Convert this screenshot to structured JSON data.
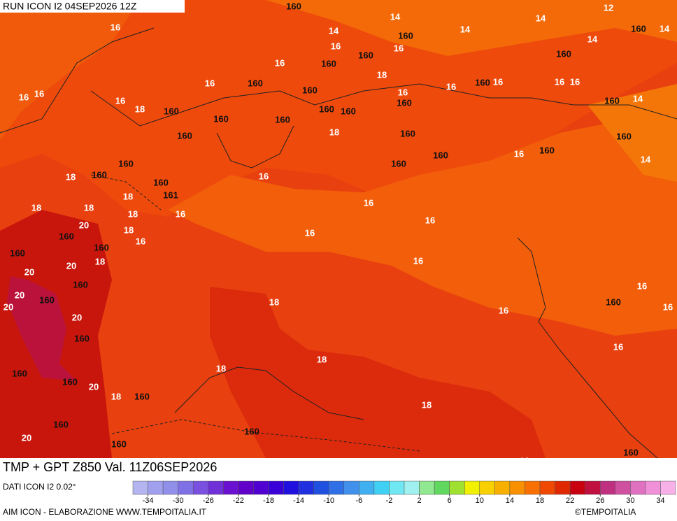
{
  "header": {
    "run": "RUN ICON I2 04SEP2026 12Z"
  },
  "map": {
    "contour_labels": [
      "160",
      "14",
      "12",
      "14",
      "16",
      "14",
      "14",
      "160",
      "160",
      "14",
      "16",
      "16",
      "160",
      "160",
      "14",
      "160",
      "16",
      "18",
      "16",
      "160",
      "160",
      "16",
      "16",
      "160",
      "16",
      "16",
      "16",
      "16",
      "16",
      "16",
      "18",
      "160",
      "160",
      "160",
      "160",
      "160",
      "160",
      "160",
      "14",
      "160",
      "18",
      "160",
      "160",
      "160",
      "16",
      "160",
      "14",
      "160",
      "160",
      "16",
      "18",
      "160",
      "160",
      "161",
      "18",
      "16",
      "18",
      "18",
      "18",
      "16",
      "16",
      "20",
      "18",
      "160",
      "16",
      "16",
      "160",
      "160",
      "18",
      "20",
      "16",
      "20",
      "160",
      "16",
      "20",
      "160",
      "18",
      "20",
      "160",
      "16",
      "16",
      "20",
      "160",
      "16",
      "18",
      "18",
      "160",
      "160",
      "20",
      "18",
      "160",
      "18",
      "160",
      "160",
      "20",
      "160",
      "160",
      "18"
    ]
  },
  "footer": {
    "title": "TMP + GPT Z850 Val. 11Z06SEP2026",
    "source": "DATI ICON I2 0.02°",
    "credits": "AIM ICON - ELABORAZIONE WWW.TEMPOITALIA.IT",
    "copyright": "©TEMPOITALIA"
  },
  "colorbar": {
    "ticks": [
      -34,
      -30,
      -26,
      -22,
      -18,
      -14,
      -10,
      -6,
      -2,
      2,
      6,
      10,
      14,
      18,
      22,
      26,
      30,
      34
    ],
    "colors": [
      "#b4b4f0",
      "#a0a0ee",
      "#9090ea",
      "#8070e6",
      "#7a50e0",
      "#7030d8",
      "#6a10d0",
      "#6000c8",
      "#5000d0",
      "#3a00d8",
      "#2010e0",
      "#2030e0",
      "#2050e0",
      "#3070e6",
      "#4090ec",
      "#40b0f0",
      "#40d0f4",
      "#70e8f4",
      "#a0f0f0",
      "#90e890",
      "#60d860",
      "#a0e030",
      "#f0f000",
      "#f8d000",
      "#f8b000",
      "#f89000",
      "#f87000",
      "#f04800",
      "#e02800",
      "#c80010",
      "#c01040",
      "#c03080",
      "#d050a0",
      "#e070c0",
      "#f090d8",
      "#f8b0e8"
    ]
  }
}
